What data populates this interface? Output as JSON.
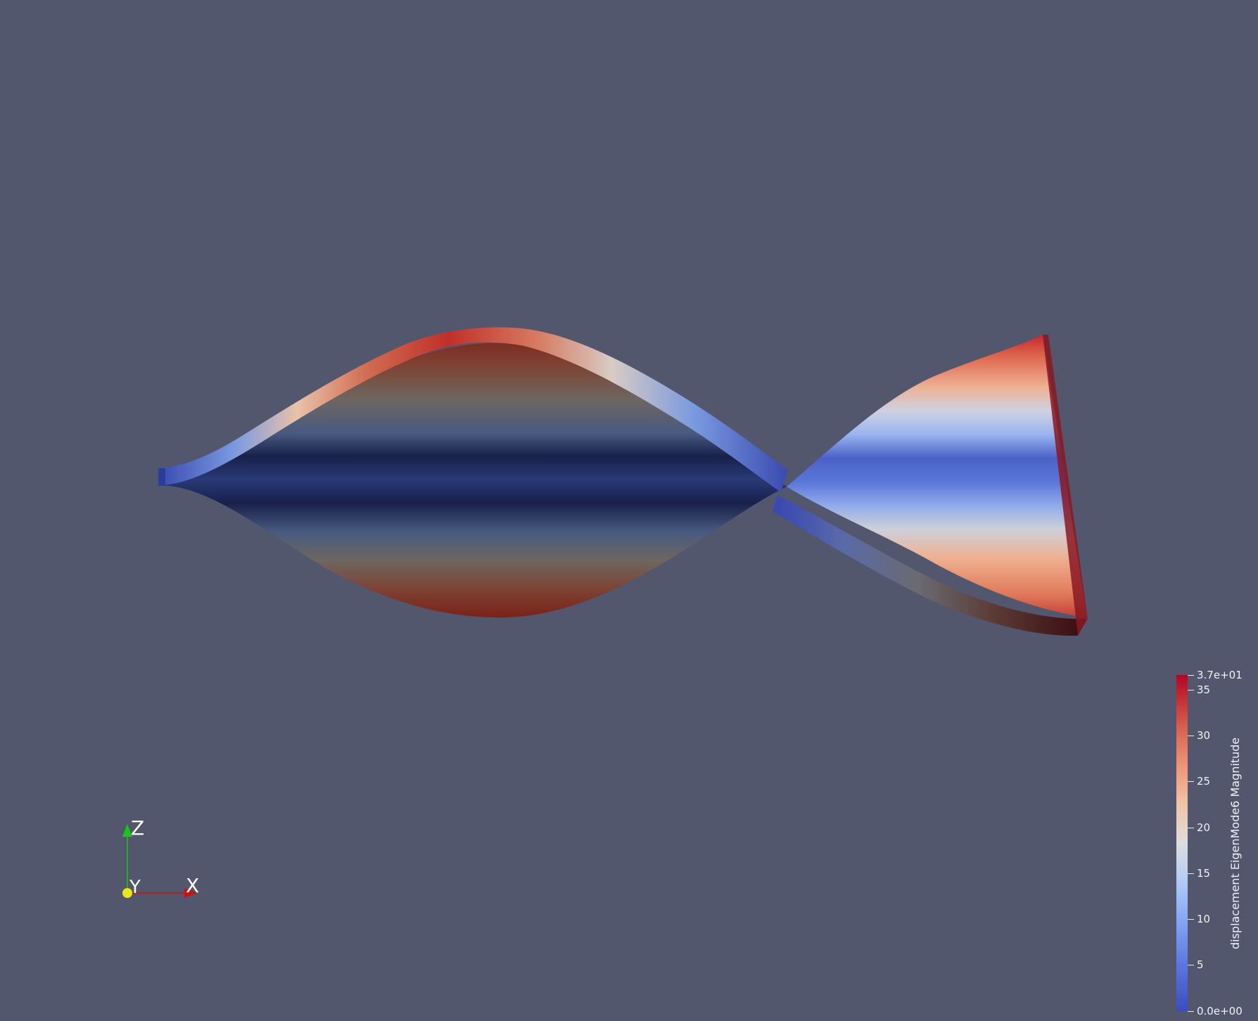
{
  "viewer": {
    "background_color": "#52576e"
  },
  "colorbar": {
    "title": "displacement EigenMode6 Magnitude",
    "colormap": "coolwarm",
    "min_label": "0.0e+00",
    "max_label": "3.7e+01",
    "ticks": [
      "5",
      "10",
      "15",
      "20",
      "25",
      "30",
      "35"
    ]
  },
  "orientation_axes": {
    "x_label": "X",
    "y_label": "Y",
    "z_label": "Z",
    "x_color": "#cc1111",
    "y_color": "#e8e812",
    "z_color": "#11cc11"
  }
}
